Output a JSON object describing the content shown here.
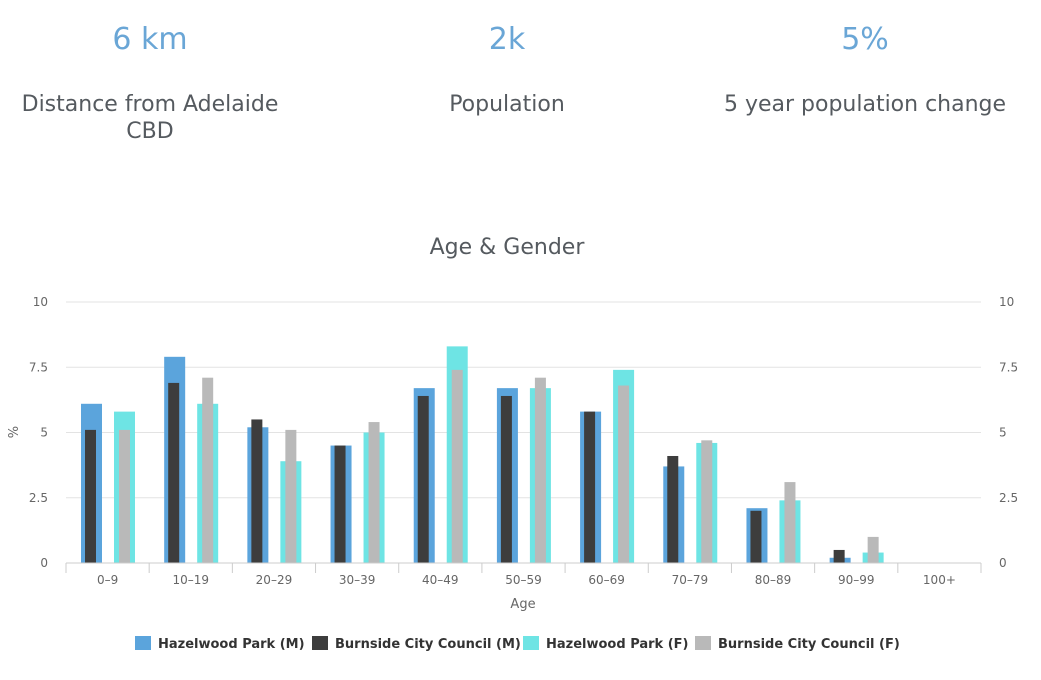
{
  "stats": [
    {
      "value": "6 km",
      "label": "Distance from Adelaide CBD"
    },
    {
      "value": "2k",
      "label": "Population"
    },
    {
      "value": "5%",
      "label": "5 year population change"
    }
  ],
  "chart_data": {
    "type": "bar",
    "title": "Age & Gender",
    "xlabel": "Age",
    "ylabel": "%",
    "ylim": [
      0,
      10
    ],
    "yticks": [
      0,
      2.5,
      5,
      7.5,
      10
    ],
    "ytick_labels": [
      "0",
      "2.5",
      "5",
      "7.5",
      "10"
    ],
    "grid": true,
    "legend_position": "bottom",
    "categories": [
      "0–9",
      "10–19",
      "20–29",
      "30–39",
      "40–49",
      "50–59",
      "60–69",
      "70–79",
      "80–89",
      "90–99",
      "100+"
    ],
    "series": [
      {
        "name": "Hazelwood Park (M)",
        "color": "#5ba4dc",
        "values": [
          6.1,
          7.9,
          5.2,
          4.5,
          6.7,
          6.7,
          5.8,
          3.7,
          2.1,
          0.2,
          0
        ]
      },
      {
        "name": "Burnside City Council (M)",
        "color": "#3d3d3d",
        "values": [
          5.1,
          6.9,
          5.5,
          4.5,
          6.4,
          6.4,
          5.8,
          4.1,
          2.0,
          0.5,
          0
        ]
      },
      {
        "name": "Hazelwood Park (F)",
        "color": "#6ee4e4",
        "values": [
          5.8,
          6.1,
          3.9,
          5.0,
          8.3,
          6.7,
          7.4,
          4.6,
          2.4,
          0.4,
          0
        ]
      },
      {
        "name": "Burnside City Council (F)",
        "color": "#b9b9b9",
        "values": [
          5.1,
          7.1,
          5.1,
          5.4,
          7.4,
          7.1,
          6.8,
          4.7,
          3.1,
          1.0,
          0
        ]
      }
    ]
  }
}
